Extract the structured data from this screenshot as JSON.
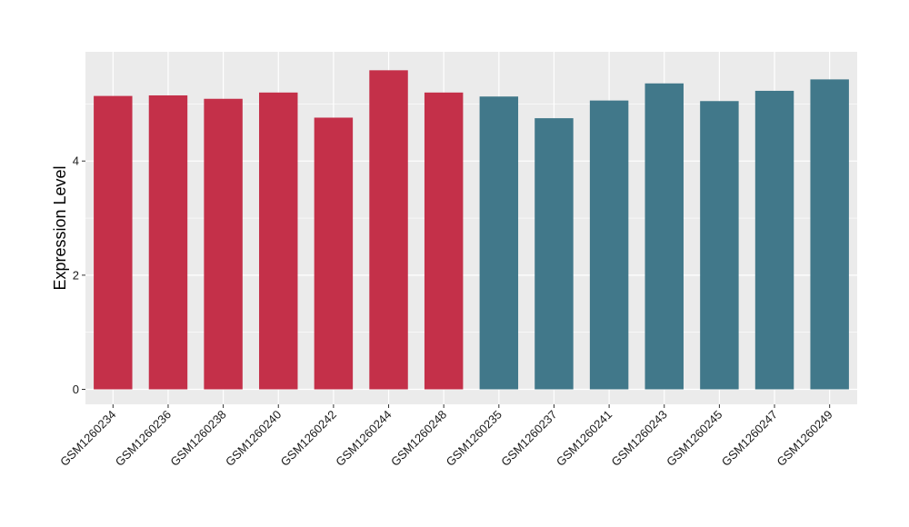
{
  "chart_data": {
    "type": "bar",
    "title": "",
    "xlabel": "",
    "ylabel": "Expression Level",
    "ylim": [
      0,
      5.85
    ],
    "yticks": [
      0,
      2,
      4
    ],
    "ytick_labels": [
      "0",
      "2",
      "4"
    ],
    "grid": true,
    "legend": "none",
    "categories": [
      "GSM1260234",
      "GSM1260236",
      "GSM1260238",
      "GSM1260240",
      "GSM1260242",
      "GSM1260244",
      "GSM1260248",
      "GSM1260235",
      "GSM1260237",
      "GSM1260241",
      "GSM1260243",
      "GSM1260245",
      "GSM1260247",
      "GSM1260249"
    ],
    "values": [
      5.14,
      5.15,
      5.09,
      5.2,
      4.76,
      5.59,
      5.2,
      5.13,
      4.75,
      5.06,
      5.36,
      5.05,
      5.23,
      5.43
    ],
    "groups": [
      "a",
      "a",
      "a",
      "a",
      "a",
      "a",
      "a",
      "b",
      "b",
      "b",
      "b",
      "b",
      "b",
      "b"
    ],
    "colors": {
      "a": "#c43049",
      "b": "#41788a"
    }
  }
}
